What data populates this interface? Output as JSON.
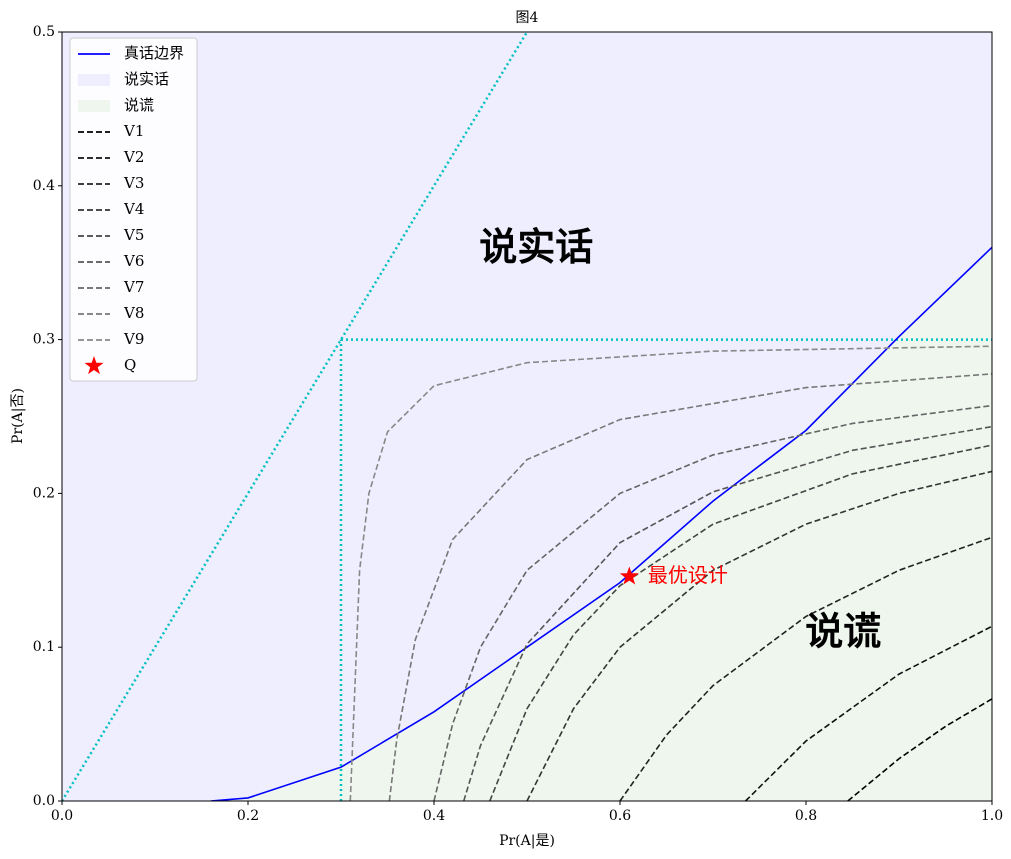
{
  "chart_data": {
    "type": "line",
    "title": "图4",
    "xlabel": "Pr(A|是)",
    "ylabel": "Pr(A|否)",
    "xlim": [
      0,
      1
    ],
    "ylim": [
      0,
      0.5
    ],
    "xticks": [
      {
        "value": 0,
        "label": "0.0"
      },
      0.2,
      0.4,
      0.6,
      0.8,
      {
        "value": 1,
        "label": "1.0"
      }
    ],
    "yticks": [
      {
        "value": 0,
        "label": "0.0"
      },
      0.1,
      0.2,
      0.3,
      0.4,
      0.5
    ],
    "legend": "upper left",
    "series": [
      {
        "name": "真话边界",
        "color": "#0000ff",
        "style": "line",
        "x": [
          0.16,
          0.2,
          0.3,
          0.4,
          0.5,
          0.6,
          0.7,
          0.8,
          0.9,
          1.0
        ],
        "values": [
          0,
          0.002,
          0.022,
          0.058,
          0.1,
          0.142,
          0.195,
          0.241,
          0.302,
          0.36
        ]
      },
      {
        "name": "说实话",
        "color": "#eeeeff",
        "style": "fill-above"
      },
      {
        "name": "说谎",
        "color": "#eef6ee",
        "style": "fill-below"
      },
      {
        "name": "V1",
        "color": "#000000",
        "style": "dashed",
        "x": [
          0.845,
          0.9,
          0.95,
          1.0
        ],
        "values": [
          0,
          0.0275,
          0.0485,
          0.0664
        ]
      },
      {
        "name": "V2",
        "color": "#111111",
        "style": "dashed",
        "x": [
          0.735,
          0.8,
          0.9,
          1.0
        ],
        "values": [
          0,
          0.039,
          0.0825,
          0.1136
        ]
      },
      {
        "name": "V3",
        "color": "#222222",
        "style": "dashed",
        "x": [
          0.6,
          0.65,
          0.7,
          0.8,
          0.9,
          1.0
        ],
        "values": [
          0,
          0.0429,
          0.075,
          0.12,
          0.15,
          0.1714
        ]
      },
      {
        "name": "V4",
        "color": "#333333",
        "style": "dashed",
        "x": [
          0.5,
          0.55,
          0.6,
          0.7,
          0.8,
          0.9,
          1.0
        ],
        "values": [
          0,
          0.06,
          0.1,
          0.15,
          0.18,
          0.2,
          0.2143
        ]
      },
      {
        "name": "V5",
        "color": "#444444",
        "style": "dashed",
        "x": [
          0.46,
          0.5,
          0.55,
          0.6,
          0.7,
          0.85,
          1.0
        ],
        "values": [
          0,
          0.06,
          0.108,
          0.14,
          0.18,
          0.2127,
          0.2314
        ]
      },
      {
        "name": "V6",
        "color": "#555555",
        "style": "dashed",
        "x": [
          0.432,
          0.45,
          0.5,
          0.6,
          0.7,
          0.85,
          1.0
        ],
        "values": [
          0,
          0.036,
          0.102,
          0.168,
          0.201,
          0.228,
          0.2434
        ]
      },
      {
        "name": "V7",
        "color": "#666666",
        "style": "dashed",
        "x": [
          0.4,
          0.42,
          0.45,
          0.5,
          0.6,
          0.7,
          0.85,
          1.0
        ],
        "values": [
          0,
          0.05,
          0.1,
          0.15,
          0.2,
          0.225,
          0.2455,
          0.2571
        ]
      },
      {
        "name": "V8",
        "color": "#777777",
        "style": "dashed",
        "x": [
          0.352,
          0.36,
          0.38,
          0.42,
          0.5,
          0.6,
          0.8,
          1.0
        ],
        "values": [
          0,
          0.04,
          0.105,
          0.17,
          0.222,
          0.248,
          0.2688,
          0.2777
        ]
      },
      {
        "name": "V9",
        "color": "#888888",
        "style": "dashed",
        "x": [
          0.31,
          0.32,
          0.33,
          0.35,
          0.4,
          0.5,
          0.7,
          1.0
        ],
        "values": [
          0,
          0.15,
          0.2,
          0.24,
          0.27,
          0.285,
          0.2925,
          0.2957
        ]
      },
      {
        "name": "Q",
        "color": "#ff0000",
        "style": "star",
        "x": [
          0.61
        ],
        "values": [
          0.146
        ]
      }
    ],
    "guides": [
      {
        "color": "#00c0c0",
        "x": [
          0,
          0.5
        ],
        "values": [
          0,
          0.5
        ]
      },
      {
        "color": "#00c0c0",
        "x": [
          0.3,
          1.0
        ],
        "values": [
          0.3,
          0.3
        ]
      },
      {
        "color": "#00c0c0",
        "x": [
          0.3,
          0.3
        ],
        "values": [
          0,
          0.3
        ]
      }
    ],
    "annotations": [
      {
        "text": "说实话",
        "x": 0.51,
        "y": 0.358,
        "color": "#000000",
        "weight": "bold"
      },
      {
        "text": "说谎",
        "x": 0.84,
        "y": 0.108,
        "color": "#000000",
        "weight": "bold"
      },
      {
        "text": "最优设计",
        "x": 0.63,
        "y": 0.146,
        "color": "#ff0000",
        "weight": "normal"
      }
    ]
  }
}
